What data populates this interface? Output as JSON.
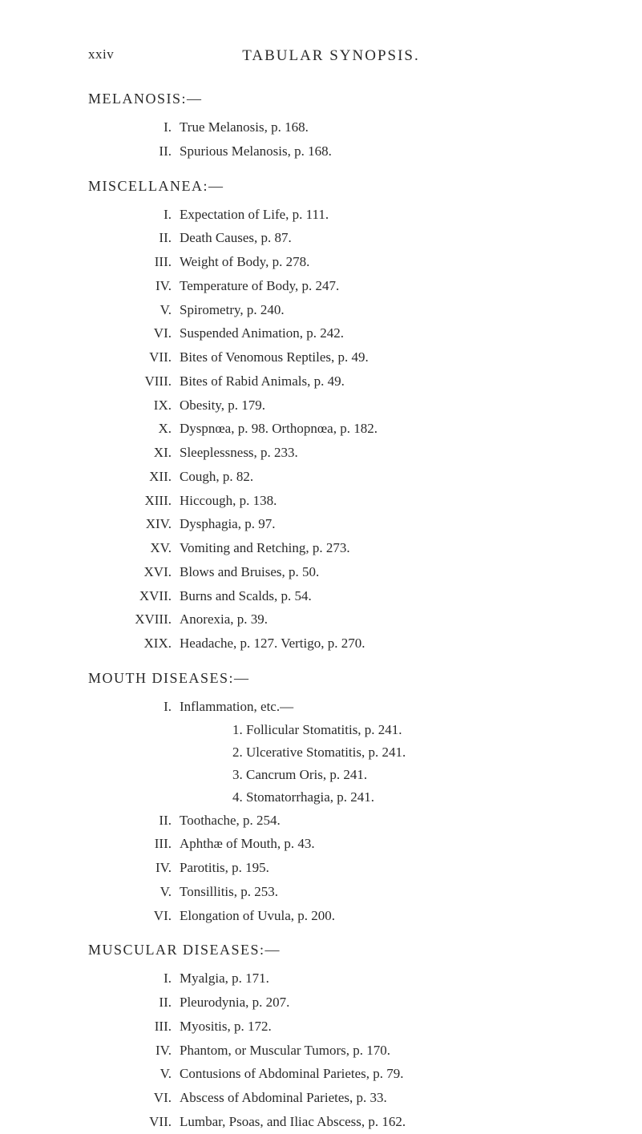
{
  "page_number": "xxiv",
  "header": "TABULAR SYNOPSIS.",
  "sections": {
    "melanosis": {
      "title": "MELANOSIS:—",
      "items": [
        {
          "roman": "I.",
          "text": "True Melanosis, p. 168."
        },
        {
          "roman": "II.",
          "text": "Spurious Melanosis, p. 168."
        }
      ]
    },
    "miscellanea": {
      "title": "MISCELLANEA:—",
      "items": [
        {
          "roman": "I.",
          "text": "Expectation of Life, p. 111."
        },
        {
          "roman": "II.",
          "text": "Death Causes, p. 87."
        },
        {
          "roman": "III.",
          "text": "Weight of Body, p. 278."
        },
        {
          "roman": "IV.",
          "text": "Temperature of Body, p. 247."
        },
        {
          "roman": "V.",
          "text": "Spirometry, p. 240."
        },
        {
          "roman": "VI.",
          "text": "Suspended Animation, p. 242."
        },
        {
          "roman": "VII.",
          "text": "Bites of Venomous Reptiles, p. 49."
        },
        {
          "roman": "VIII.",
          "text": "Bites of Rabid Animals, p. 49."
        },
        {
          "roman": "IX.",
          "text": "Obesity, p. 179."
        },
        {
          "roman": "X.",
          "text": "Dyspnœa, p. 98.   Orthopnœa, p. 182."
        },
        {
          "roman": "XI.",
          "text": "Sleeplessness, p. 233."
        },
        {
          "roman": "XII.",
          "text": "Cough, p. 82."
        },
        {
          "roman": "XIII.",
          "text": "Hiccough, p. 138."
        },
        {
          "roman": "XIV.",
          "text": "Dysphagia, p. 97."
        },
        {
          "roman": "XV.",
          "text": "Vomiting and Retching, p. 273."
        },
        {
          "roman": "XVI.",
          "text": "Blows and Bruises, p. 50."
        },
        {
          "roman": "XVII.",
          "text": "Burns and Scalds, p. 54."
        },
        {
          "roman": "XVIII.",
          "text": "Anorexia, p. 39."
        },
        {
          "roman": "XIX.",
          "text": "Headache, p. 127.   Vertigo, p. 270."
        }
      ]
    },
    "mouth": {
      "title": "MOUTH DISEASES:—",
      "items": [
        {
          "roman": "I.",
          "text": "Inflammation, etc.—"
        }
      ],
      "subitems": [
        "1. Follicular Stomatitis, p. 241.",
        "2. Ulcerative Stomatitis, p. 241.",
        "3. Cancrum Oris, p. 241.",
        "4. Stomatorrhagia, p. 241."
      ],
      "items2": [
        {
          "roman": "II.",
          "text": "Toothache, p. 254."
        },
        {
          "roman": "III.",
          "text": "Aphthæ of Mouth, p. 43."
        },
        {
          "roman": "IV.",
          "text": "Parotitis, p. 195."
        },
        {
          "roman": "V.",
          "text": "Tonsillitis, p. 253."
        },
        {
          "roman": "VI.",
          "text": "Elongation of Uvula, p. 200."
        }
      ]
    },
    "muscular": {
      "title": "MUSCULAR DISEASES:—",
      "items": [
        {
          "roman": "I.",
          "text": "Myalgia, p. 171."
        },
        {
          "roman": "II.",
          "text": "Pleurodynia, p. 207."
        },
        {
          "roman": "III.",
          "text": "Myositis, p. 172."
        },
        {
          "roman": "IV.",
          "text": "Phantom, or Muscular Tumors, p. 170."
        },
        {
          "roman": "V.",
          "text": "Contusions of Abdominal Parietes, p. 79."
        },
        {
          "roman": "VI.",
          "text": "Abscess of Abdominal Parietes, p. 33."
        },
        {
          "roman": "VII.",
          "text": "Lumbar, Psoas, and Iliac Abscess, p. 162."
        }
      ]
    }
  }
}
